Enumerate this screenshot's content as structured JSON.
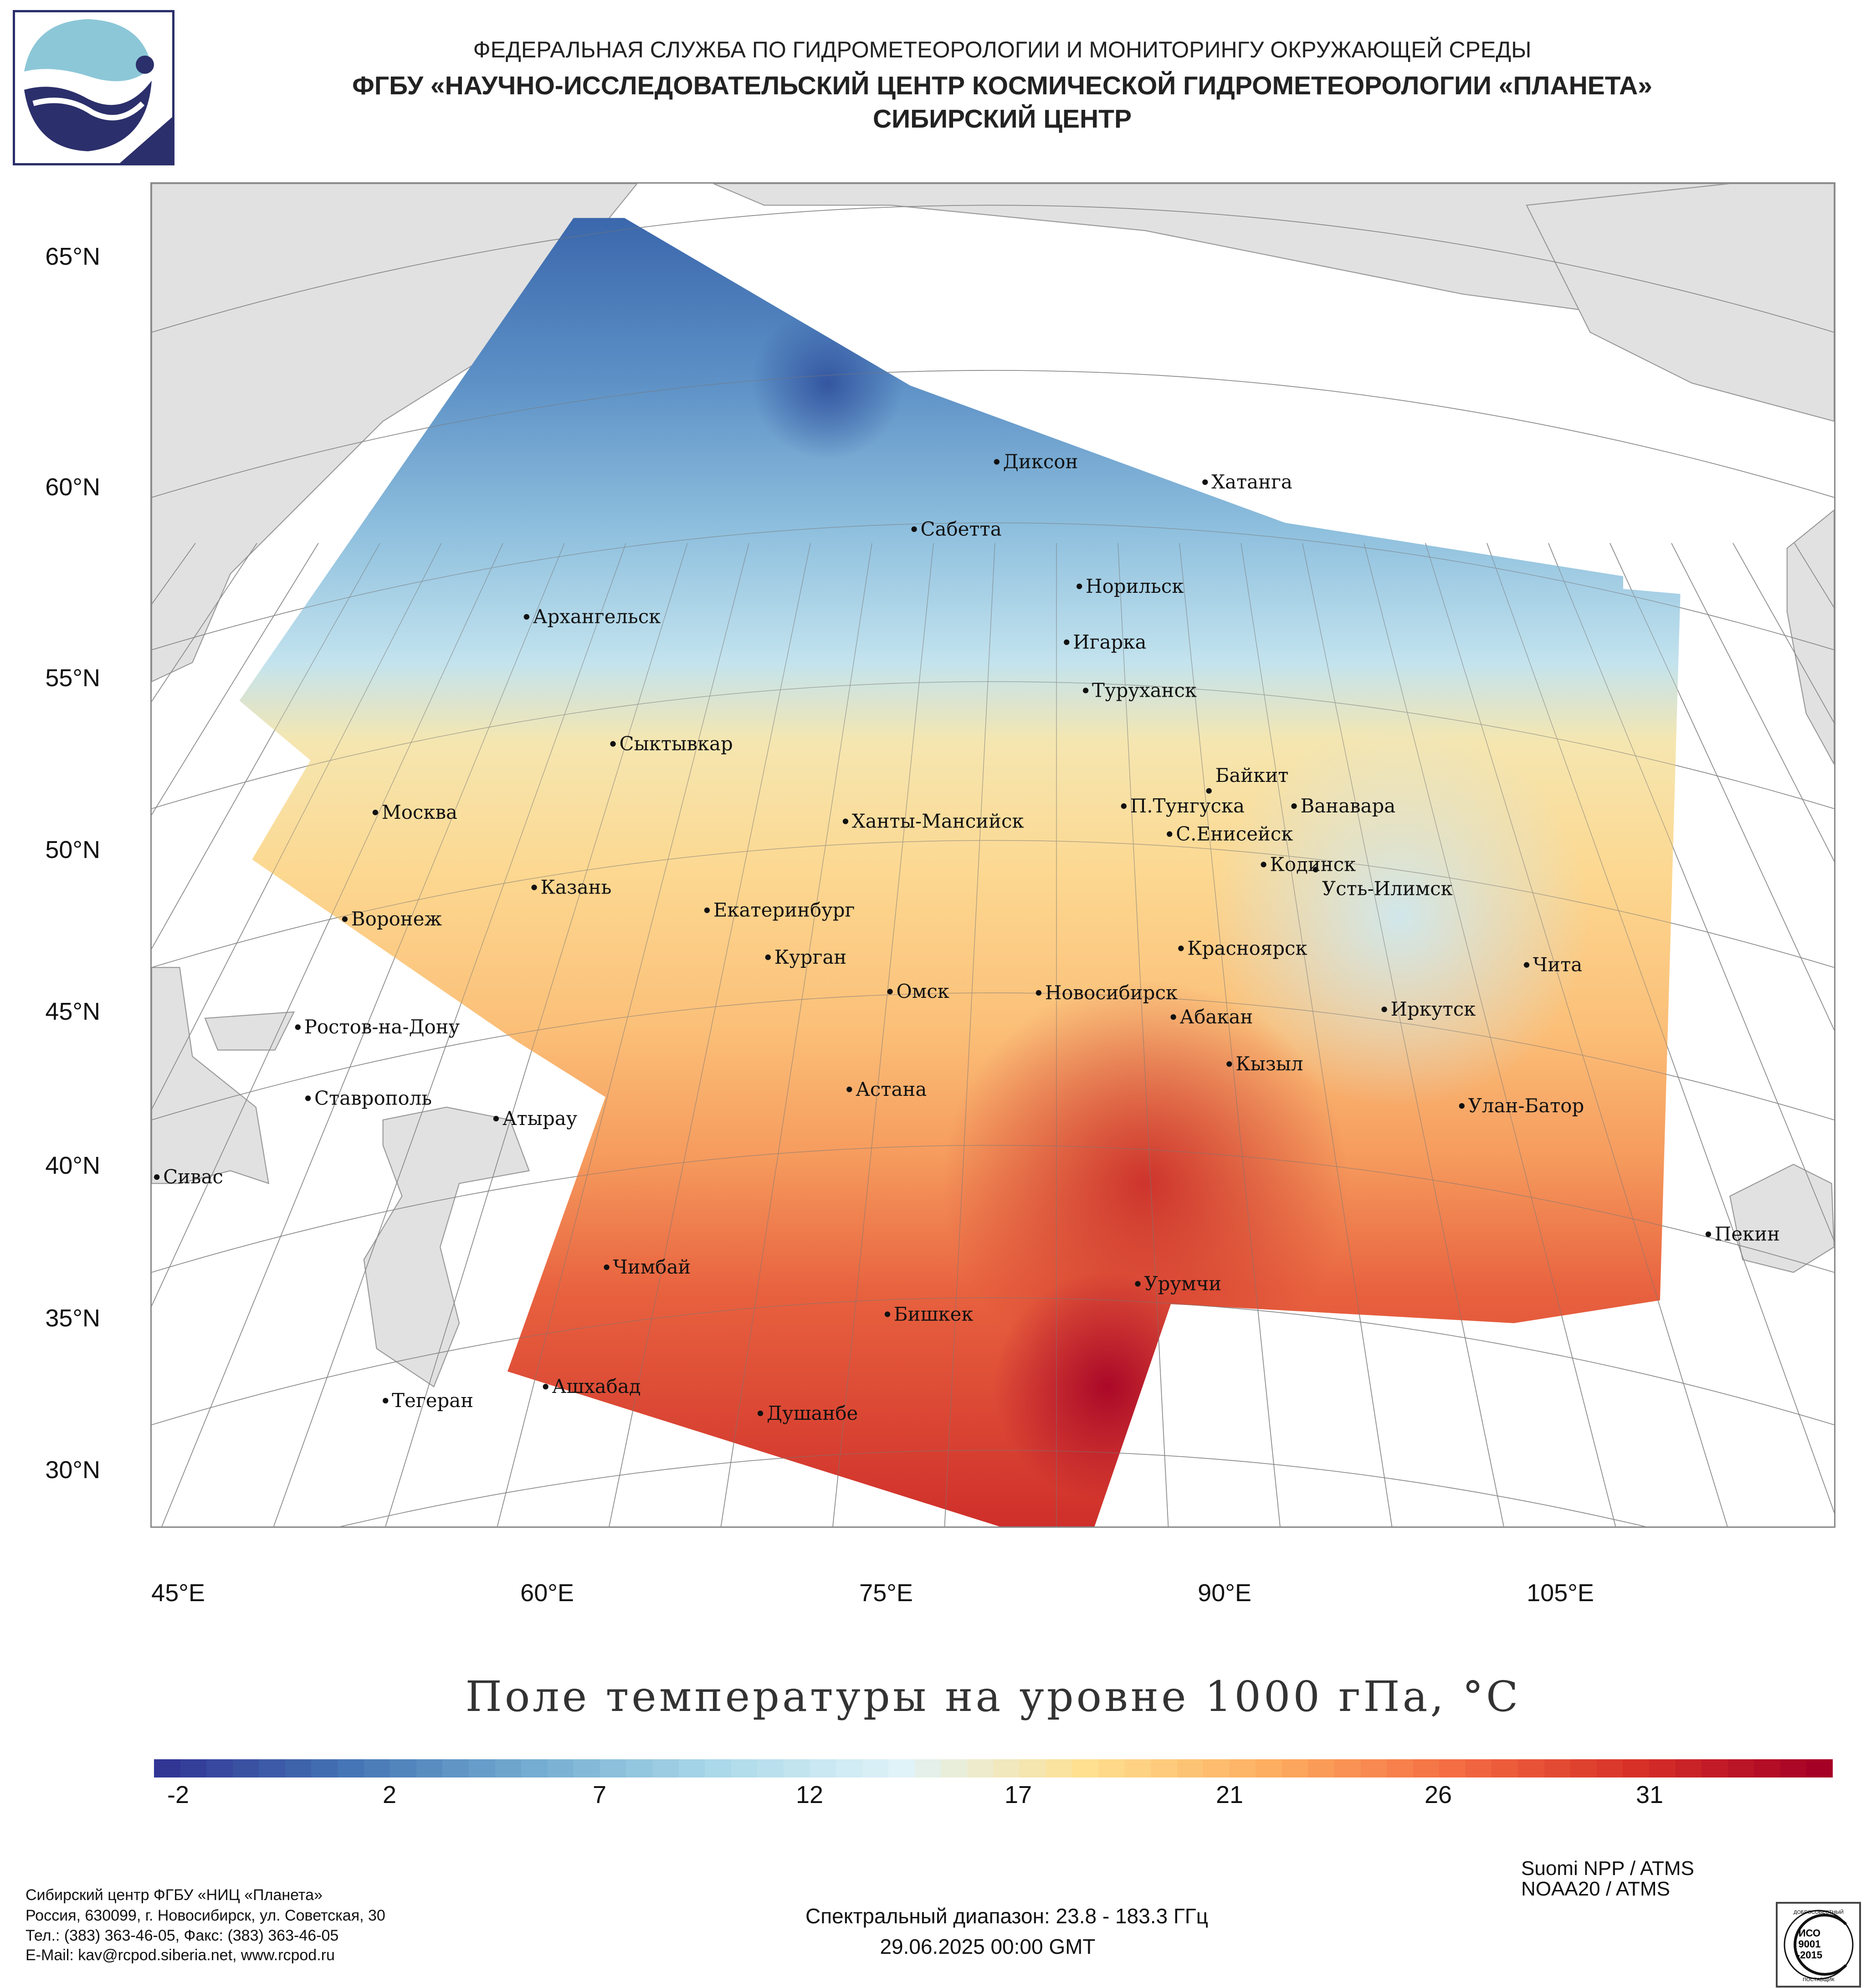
{
  "header": {
    "line1": "ФЕДЕРАЛЬНАЯ СЛУЖБА ПО ГИДРОМЕТЕОРОЛОГИИ И МОНИТОРИНГУ ОКРУЖАЮЩЕЙ СРЕДЫ",
    "line2": "ФГБУ «НАУЧНО-ИССЛЕДОВАТЕЛЬСКИЙ ЦЕНТР КОСМИЧЕСКОЙ ГИДРОМЕТЕОРОЛОГИИ «ПЛАНЕТА»",
    "line3": "СИБИРСКИЙ ЦЕНТР"
  },
  "map": {
    "lat_labels": [
      "65°N",
      "60°N",
      "55°N",
      "50°N",
      "45°N",
      "40°N",
      "35°N",
      "30°N"
    ],
    "lon_labels": [
      "45°E",
      "60°E",
      "75°E",
      "90°E",
      "105°E"
    ],
    "cities": [
      "Диксон",
      "Хатанга",
      "Сабетта",
      "Норильск",
      "Архангельск",
      "Игарка",
      "Туруханск",
      "Сыктывкар",
      "Байкит",
      "Москва",
      "П.Тунгуска",
      "Ванавара",
      "Ханты-Мансийск",
      "С.Енисейск",
      "Кодинск",
      "Усть-Илимск",
      "Казань",
      "Екатеринбург",
      "Воронеж",
      "Красноярск",
      "Курган",
      "Чита",
      "Омск",
      "Новосибирск",
      "Иркутск",
      "Абакан",
      "Ростов-на-Дону",
      "Кызыл",
      "Астана",
      "Ставрополь",
      "Улан-Батор",
      "Атырау",
      "Сивас",
      "Пекин",
      "Чимбай",
      "Урумчи",
      "Бишкек",
      "Ашхабад",
      "Тегеран",
      "Душанбе"
    ]
  },
  "title": "Поле температуры на уровне 1000 гПа, °C",
  "colorbar": {
    "labels": [
      "-2",
      "2",
      "7",
      "12",
      "17",
      "21",
      "26",
      "31"
    ],
    "colors": [
      "#313695",
      "#4575b4",
      "#74add1",
      "#abd9e9",
      "#e0f3f8",
      "#fee090",
      "#fdae61",
      "#f46d43",
      "#d73027",
      "#a50026"
    ]
  },
  "footer": {
    "org": [
      "Сибирский центр ФГБУ «НИЦ «Планета»",
      "Россия, 630099, г. Новосибирск, ул. Советская, 30",
      "Тел.: (383) 363-46-05, Факс: (383) 363-46-05",
      "E-Mail: kav@rcpod.siberia.net, www.rcpod.ru"
    ],
    "spectral": "Спектральный диапазон: 23.8 - 183.3 ГГц",
    "datetime": "29.06.2025 00:00 GMT",
    "satellites": [
      "Suomi NPP / ATMS",
      "NOAA20 / ATMS"
    ],
    "stamp": [
      "ДОБРОСОВЕСТНЫЙ",
      "ИСО",
      "9001",
      "-2015",
      "ПОСТАВЩИК"
    ]
  }
}
